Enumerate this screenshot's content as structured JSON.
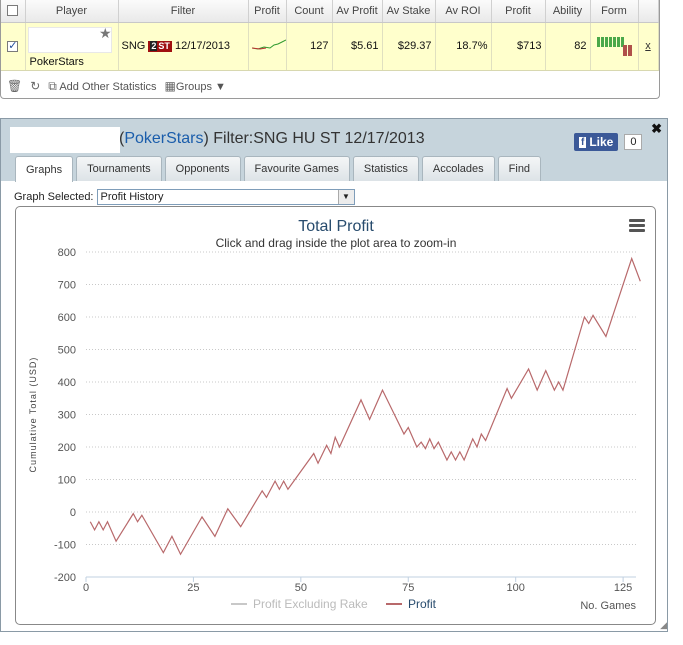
{
  "stats_table": {
    "headers": [
      "Player",
      "Filter",
      "Profit",
      "Count",
      "Av Profit",
      "Av Stake",
      "Av ROI",
      "Profit",
      "Ability",
      "Form"
    ],
    "row": {
      "player_site": "PokerStars",
      "filter_prefix": "SNG",
      "filter_badge_num": "2",
      "filter_badge_text": "ST",
      "filter_date": "12/17/2013",
      "count": "127",
      "av_profit": "$5.61",
      "av_stake": "$29.37",
      "av_roi": "18.7%",
      "profit": "$713",
      "ability": "82",
      "remove": "x"
    },
    "toolbar": {
      "add_stats": "Add Other Statistics",
      "groups": "Groups"
    }
  },
  "window": {
    "title_site": "PokerStars",
    "title_filter": "Filter:SNG HU ST 12/17/2013",
    "like_label": "Like",
    "like_count": "0",
    "tabs": [
      {
        "label": "Graphs",
        "active": true
      },
      {
        "label": "Tournaments",
        "active": false
      },
      {
        "label": "Opponents",
        "active": false
      },
      {
        "label": "Favourite Games",
        "active": false
      },
      {
        "label": "Statistics",
        "active": false
      },
      {
        "label": "Accolades",
        "active": false
      },
      {
        "label": "Find",
        "active": false
      }
    ],
    "graph_select_label": "Graph Selected:",
    "graph_select_value": "Profit History"
  },
  "chart_data": {
    "type": "line",
    "title": "Total Profit",
    "subtitle": "Click and drag inside the plot area to zoom-in",
    "xlabel": "No. Games",
    "ylabel": "Cumulative Total (USD)",
    "xlim": [
      0,
      128
    ],
    "ylim": [
      -200,
      800
    ],
    "x_ticks": [
      0,
      25,
      50,
      75,
      100,
      125
    ],
    "y_ticks": [
      -200,
      -100,
      0,
      100,
      200,
      300,
      400,
      500,
      600,
      700,
      800
    ],
    "grid": true,
    "legend_position": "bottom-center",
    "colors": {
      "profit": "#b8696b",
      "profit_ex_rake": "#c8c8c8",
      "title": "#274b6d"
    },
    "series": [
      {
        "name": "Profit Excluding Rake",
        "values": []
      },
      {
        "name": "Profit",
        "points": [
          [
            1,
            -30
          ],
          [
            2,
            -55
          ],
          [
            3,
            -30
          ],
          [
            4,
            -55
          ],
          [
            5,
            -30
          ],
          [
            7,
            -90
          ],
          [
            11,
            -5
          ],
          [
            12,
            -30
          ],
          [
            13,
            -10
          ],
          [
            18,
            -125
          ],
          [
            20,
            -75
          ],
          [
            22,
            -130
          ],
          [
            27,
            -15
          ],
          [
            30,
            -75
          ],
          [
            33,
            10
          ],
          [
            36,
            -45
          ],
          [
            41,
            65
          ],
          [
            42,
            45
          ],
          [
            44,
            95
          ],
          [
            45,
            70
          ],
          [
            46,
            95
          ],
          [
            47,
            70
          ],
          [
            53,
            180
          ],
          [
            54,
            150
          ],
          [
            56,
            205
          ],
          [
            57,
            180
          ],
          [
            58,
            230
          ],
          [
            59,
            200
          ],
          [
            64,
            345
          ],
          [
            66,
            285
          ],
          [
            69,
            375
          ],
          [
            74,
            240
          ],
          [
            75,
            260
          ],
          [
            77,
            200
          ],
          [
            78,
            215
          ],
          [
            79,
            195
          ],
          [
            80,
            225
          ],
          [
            81,
            195
          ],
          [
            82,
            215
          ],
          [
            84,
            160
          ],
          [
            85,
            185
          ],
          [
            86,
            160
          ],
          [
            87,
            185
          ],
          [
            88,
            160
          ],
          [
            90,
            225
          ],
          [
            91,
            200
          ],
          [
            92,
            240
          ],
          [
            93,
            220
          ],
          [
            98,
            380
          ],
          [
            99,
            350
          ],
          [
            103,
            440
          ],
          [
            105,
            375
          ],
          [
            107,
            435
          ],
          [
            109,
            375
          ],
          [
            110,
            400
          ],
          [
            111,
            375
          ],
          [
            116,
            600
          ],
          [
            117,
            580
          ],
          [
            118,
            605
          ],
          [
            121,
            540
          ],
          [
            127,
            780
          ],
          [
            129,
            710
          ]
        ]
      }
    ]
  }
}
